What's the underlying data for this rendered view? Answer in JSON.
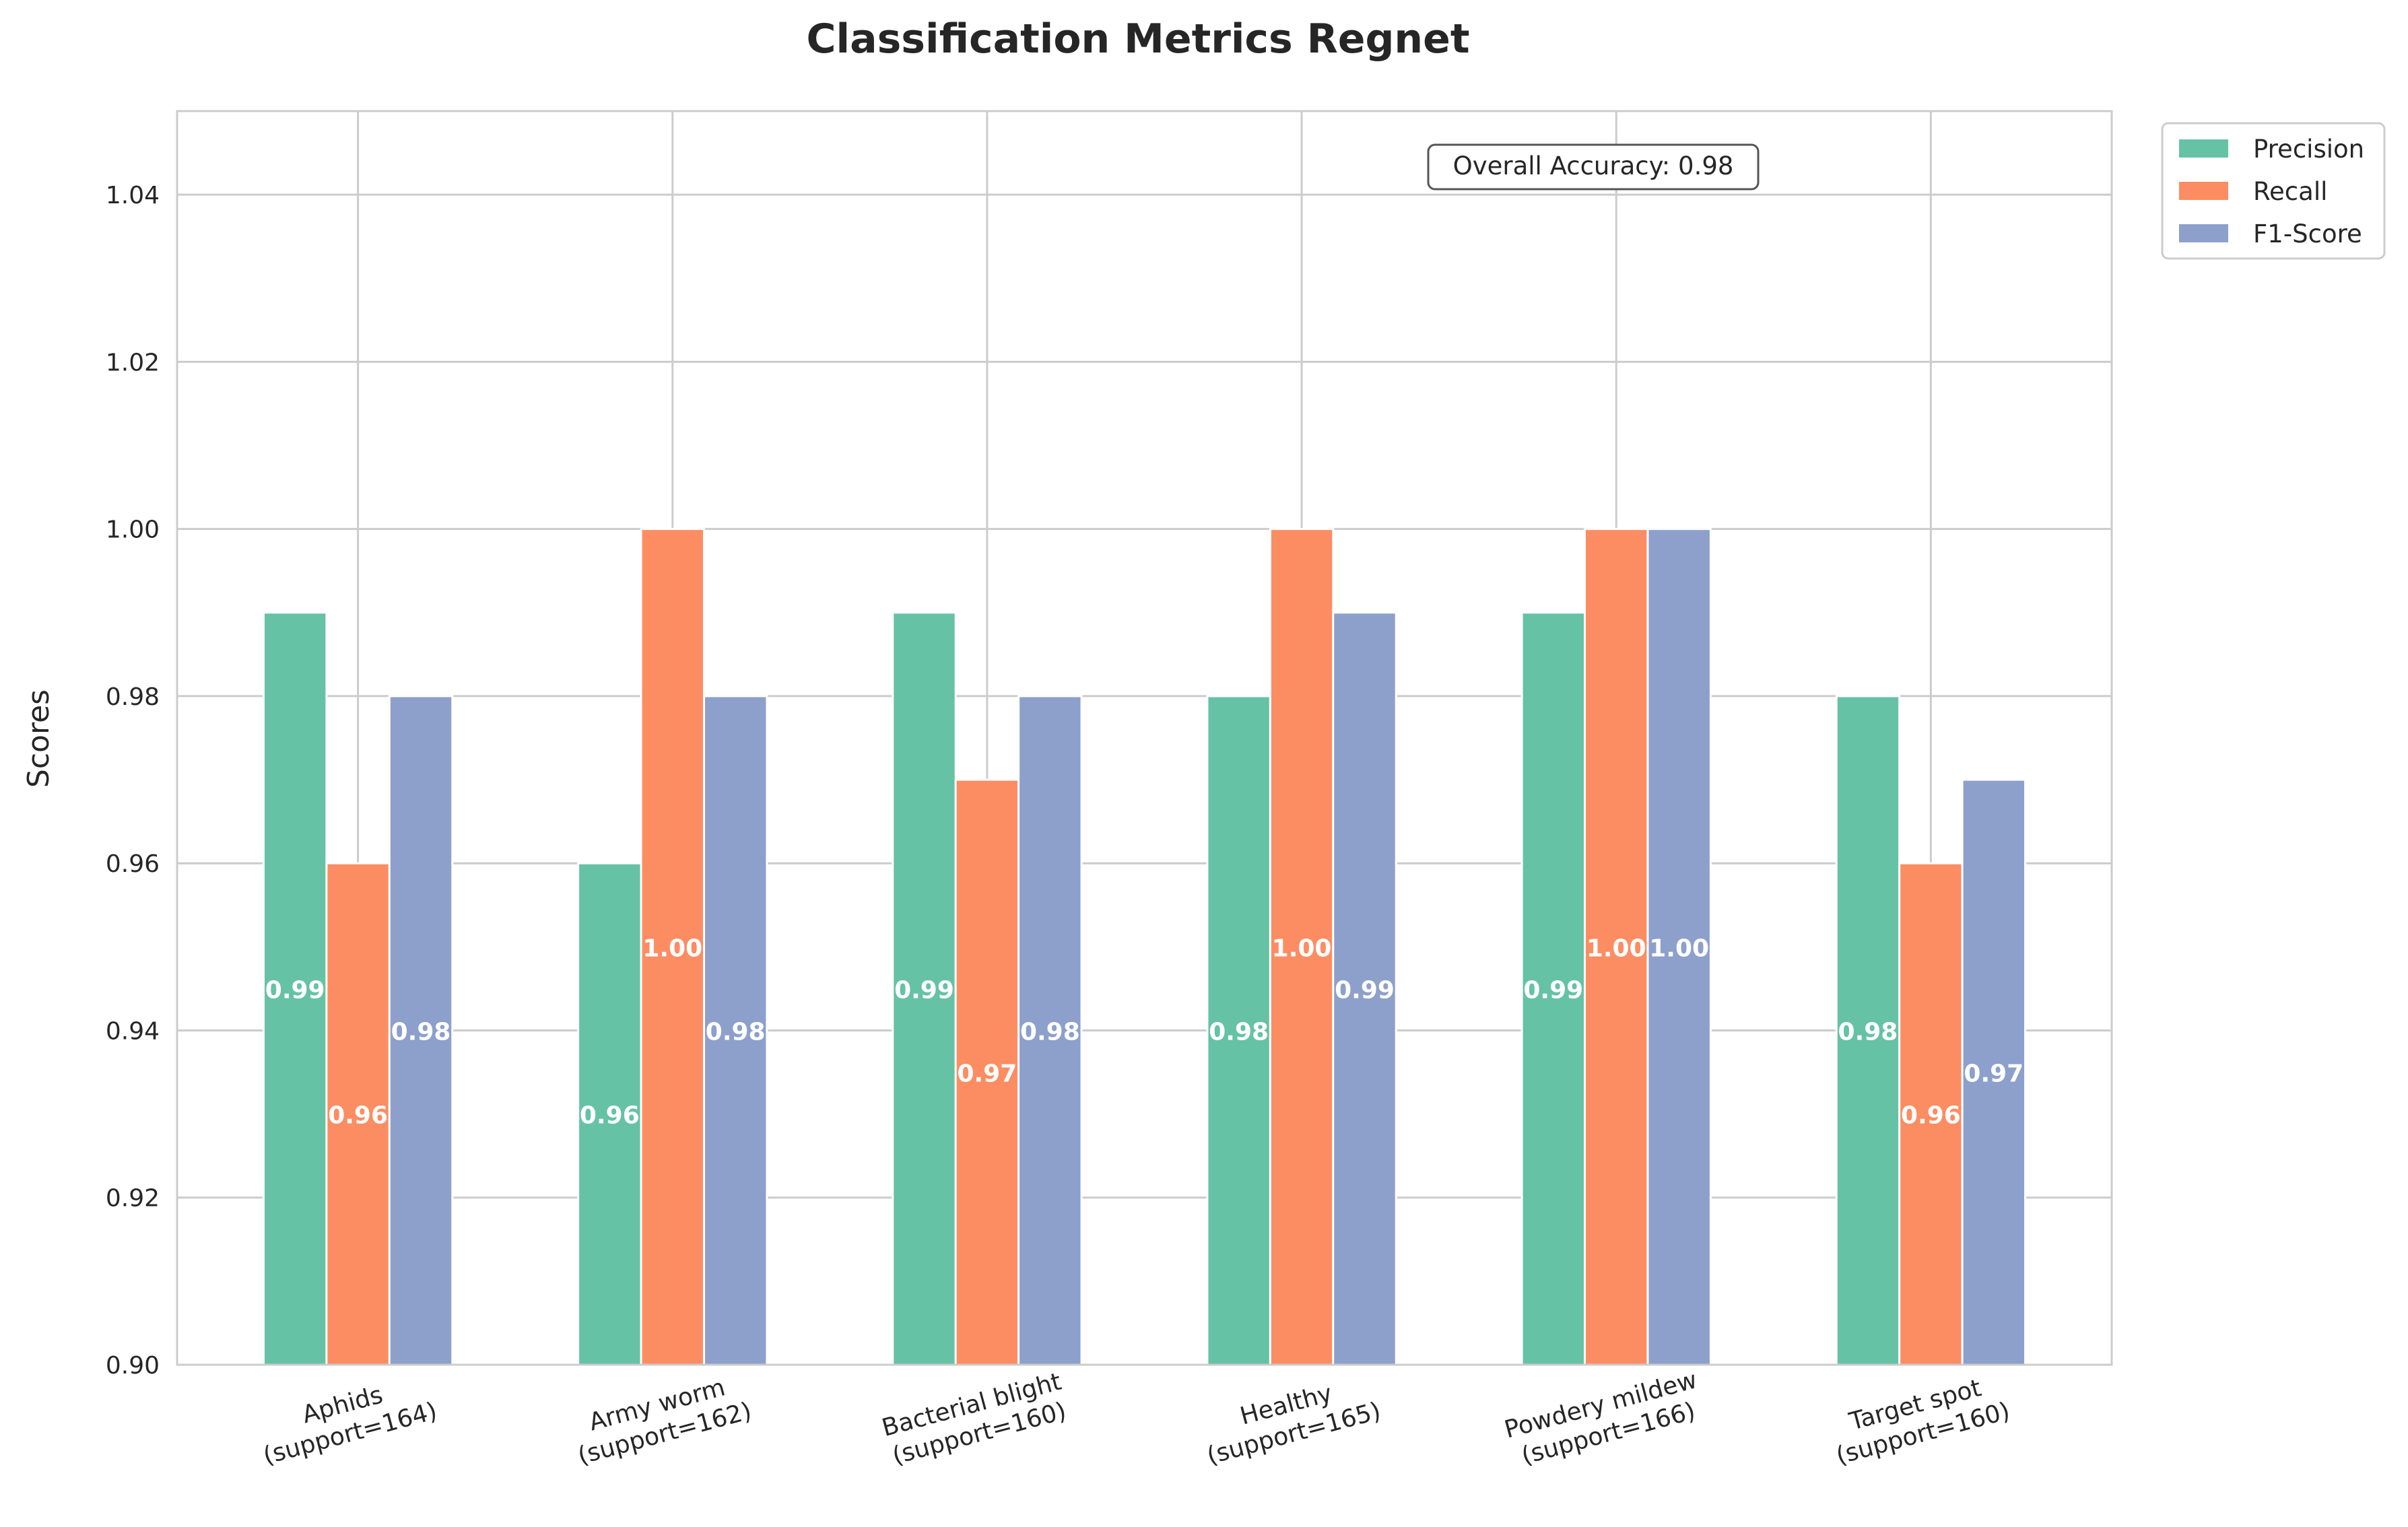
{
  "colors": {
    "precision": "#66c2a5",
    "recall": "#fc8d62",
    "f1": "#8da0cb",
    "grid": "#cccccc",
    "axes_edge": "#cccccc",
    "text": "#262626",
    "bar_label": "#ffffff"
  },
  "chart_data": {
    "type": "bar",
    "title": "Classification Metrics Regnet",
    "xlabel": "",
    "ylabel": "Scores",
    "ylim": [
      0.9,
      1.05
    ],
    "yticks": [
      "0.90",
      "0.92",
      "0.94",
      "0.96",
      "0.98",
      "1.00",
      "1.02",
      "1.04"
    ],
    "grid": true,
    "legend_position": "outside-top-right",
    "categories": [
      {
        "name": "Aphids",
        "support": "(support=164)"
      },
      {
        "name": "Army worm",
        "support": "(support=162)"
      },
      {
        "name": "Bacterial blight",
        "support": "(support=160)"
      },
      {
        "name": "Healthy",
        "support": "(support=165)"
      },
      {
        "name": "Powdery mildew",
        "support": "(support=166)"
      },
      {
        "name": "Target spot",
        "support": "(support=160)"
      }
    ],
    "series": [
      {
        "name": "Precision",
        "color_key": "precision",
        "values": [
          0.99,
          0.96,
          0.99,
          0.98,
          0.99,
          0.98
        ],
        "labels": [
          "0.99",
          "0.96",
          "0.99",
          "0.98",
          "0.99",
          "0.98"
        ]
      },
      {
        "name": "Recall",
        "color_key": "recall",
        "values": [
          0.96,
          1.0,
          0.97,
          1.0,
          1.0,
          0.96
        ],
        "labels": [
          "0.96",
          "1.00",
          "0.97",
          "1.00",
          "1.00",
          "0.96"
        ]
      },
      {
        "name": "F1-Score",
        "color_key": "f1",
        "values": [
          0.98,
          0.98,
          0.98,
          0.99,
          1.0,
          0.97
        ],
        "labels": [
          "0.98",
          "0.98",
          "0.98",
          "0.99",
          "1.00",
          "0.97"
        ]
      }
    ],
    "annotation": "Overall Accuracy: 0.98"
  }
}
